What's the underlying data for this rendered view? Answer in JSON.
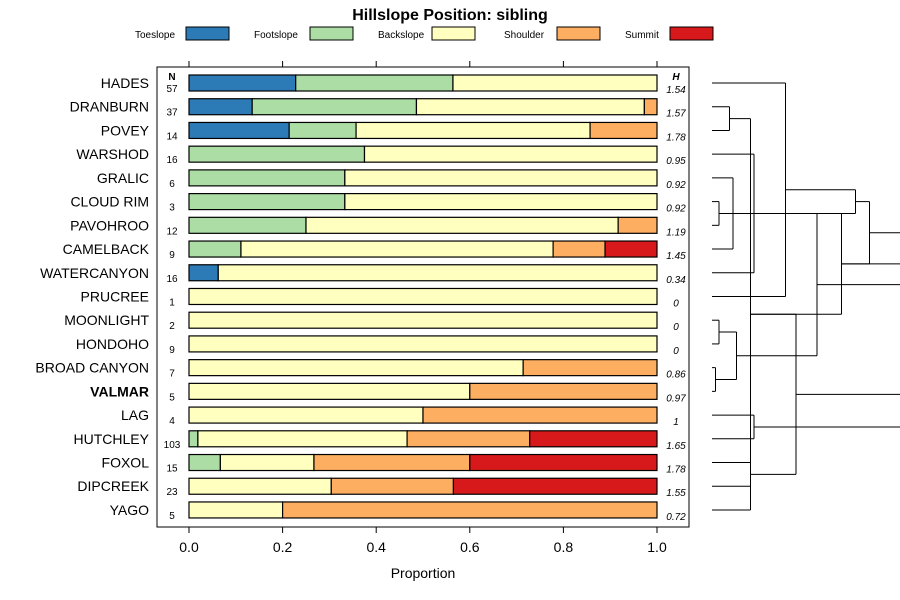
{
  "chart_data": {
    "type": "bar",
    "orientation": "horizontal",
    "stacked": true,
    "title": "Hillslope Position: sibling",
    "xlabel": "Proportion",
    "ylabel": "",
    "xlim": [
      0,
      1
    ],
    "x_ticks": [
      "0.0",
      "0.2",
      "0.4",
      "0.6",
      "0.8",
      "1.0"
    ],
    "n_header": "N",
    "h_header": "H",
    "legend_position": "top",
    "emphasized_category": "VALMAR",
    "series": [
      {
        "name": "Toeslope",
        "color": "#2c7bb6"
      },
      {
        "name": "Footslope",
        "color": "#abdda4"
      },
      {
        "name": "Backslope",
        "color": "#ffffbf"
      },
      {
        "name": "Shoulder",
        "color": "#fdae61"
      },
      {
        "name": "Summit",
        "color": "#d7191c"
      }
    ],
    "categories": [
      {
        "label": "HADES",
        "n": "57",
        "h": "1.54",
        "values": [
          0.228,
          0.336,
          0.436,
          0,
          0
        ]
      },
      {
        "label": "DRANBURN",
        "n": "37",
        "h": "1.57",
        "values": [
          0.135,
          0.351,
          0.487,
          0.027,
          0
        ]
      },
      {
        "label": "POVEY",
        "n": "14",
        "h": "1.78",
        "values": [
          0.214,
          0.143,
          0.5,
          0.143,
          0
        ]
      },
      {
        "label": "WARSHOD",
        "n": "16",
        "h": "0.95",
        "values": [
          0,
          0.375,
          0.625,
          0,
          0
        ]
      },
      {
        "label": "GRALIC",
        "n": "6",
        "h": "0.92",
        "values": [
          0,
          0.333,
          0.667,
          0,
          0
        ]
      },
      {
        "label": "CLOUD RIM",
        "n": "3",
        "h": "0.92",
        "values": [
          0,
          0.333,
          0.667,
          0,
          0
        ]
      },
      {
        "label": "PAVOHROO",
        "n": "12",
        "h": "1.19",
        "values": [
          0,
          0.25,
          0.667,
          0.083,
          0
        ]
      },
      {
        "label": "CAMELBACK",
        "n": "9",
        "h": "1.45",
        "values": [
          0,
          0.111,
          0.667,
          0.111,
          0.111
        ]
      },
      {
        "label": "WATERCANYON",
        "n": "16",
        "h": "0.34",
        "values": [
          0.0625,
          0,
          0.9375,
          0,
          0
        ]
      },
      {
        "label": "PRUCREE",
        "n": "1",
        "h": "0",
        "values": [
          0,
          0,
          1,
          0,
          0
        ]
      },
      {
        "label": "MOONLIGHT",
        "n": "2",
        "h": "0",
        "values": [
          0,
          0,
          1,
          0,
          0
        ]
      },
      {
        "label": "HONDOHO",
        "n": "9",
        "h": "0",
        "values": [
          0,
          0,
          1,
          0,
          0
        ]
      },
      {
        "label": "BROAD CANYON",
        "n": "7",
        "h": "0.86",
        "values": [
          0,
          0,
          0.714,
          0.286,
          0
        ]
      },
      {
        "label": "VALMAR",
        "n": "5",
        "h": "0.97",
        "values": [
          0,
          0,
          0.6,
          0.4,
          0
        ]
      },
      {
        "label": "LAG",
        "n": "4",
        "h": "1",
        "values": [
          0,
          0,
          0.5,
          0.5,
          0
        ]
      },
      {
        "label": "HUTCHLEY",
        "n": "103",
        "h": "1.65",
        "values": [
          0,
          0.019,
          0.447,
          0.262,
          0.272
        ]
      },
      {
        "label": "FOXOL",
        "n": "15",
        "h": "1.78",
        "values": [
          0,
          0.067,
          0.2,
          0.333,
          0.4
        ]
      },
      {
        "label": "DIPCREEK",
        "n": "23",
        "h": "1.55",
        "values": [
          0,
          0,
          0.304,
          0.261,
          0.435
        ]
      },
      {
        "label": "YAGO",
        "n": "5",
        "h": "0.72",
        "values": [
          0,
          0,
          0.2,
          0.8,
          0
        ]
      }
    ],
    "dendrogram": {
      "merges": [
        [
          1,
          2,
          0.05
        ],
        [
          6,
          5,
          0.02
        ],
        [
          7,
          4,
          0.06
        ],
        [
          8,
          3,
          0.12
        ],
        [
          9,
          0,
          0.21
        ],
        [
          10,
          11,
          0.02
        ],
        [
          12,
          13,
          0.01
        ],
        [
          15,
          14,
          0.12
        ],
        [
          16,
          17,
          0.11
        ],
        [
          18,
          19,
          0.06
        ],
        [
          20,
          21,
          0.19
        ],
        [
          -1,
          -2,
          0.12
        ],
        [
          22,
          23,
          0.2
        ],
        [
          24,
          25,
          0.05
        ],
        [
          26,
          -3,
          0.18
        ],
        [
          28,
          27,
          0.13
        ],
        [
          30,
          31,
          0.04
        ],
        [
          32,
          29,
          0.05
        ],
        [
          33,
          34,
          0.29
        ],
        [
          35,
          36,
          0.5
        ]
      ]
    }
  }
}
